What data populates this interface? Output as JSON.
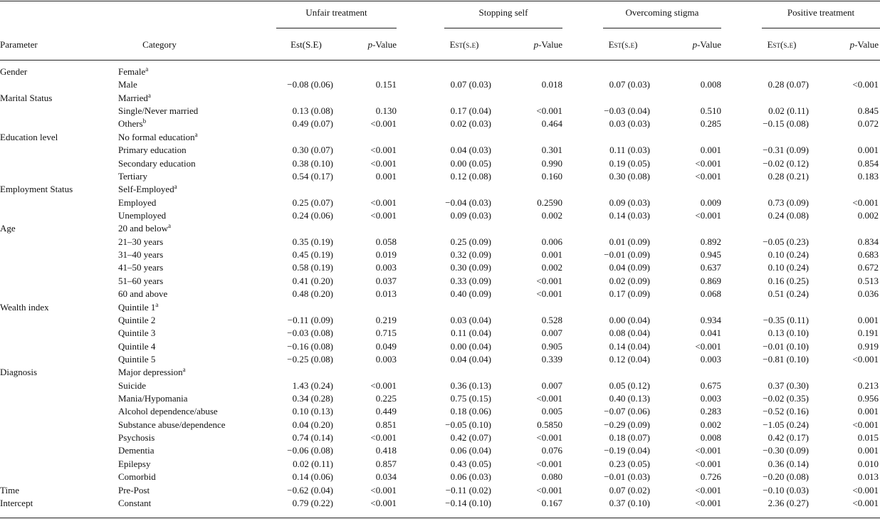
{
  "header": {
    "parameter": "Parameter",
    "category": "Category",
    "groups": [
      {
        "title": "Unfair treatment",
        "est": "Est(S.E)",
        "p": "p-Value"
      },
      {
        "title": "Stopping self",
        "est": "Est(s.e)",
        "p": "p-Value"
      },
      {
        "title": "Overcoming stigma",
        "est": "Est(s.e)",
        "p": "p-Value"
      },
      {
        "title": "Positive treatment",
        "est": "Est(s.e)",
        "p": "p-Value"
      }
    ]
  },
  "table": {
    "groups": [
      {
        "parameter": "Gender",
        "rows": [
          {
            "category": "Female",
            "note": "a"
          },
          {
            "category": "Male",
            "values": [
              "−0.08 (0.06)",
              "0.151",
              "0.07 (0.03)",
              "0.018",
              "0.07 (0.03)",
              "0.008",
              "0.28 (0.07)",
              "<0.001"
            ]
          }
        ]
      },
      {
        "parameter": "Marital Status",
        "rows": [
          {
            "category": "Married",
            "note": "a"
          },
          {
            "category": "Single/Never married",
            "values": [
              "0.13 (0.08)",
              "0.130",
              "0.17 (0.04)",
              "<0.001",
              "−0.03 (0.04)",
              "0.510",
              "0.02 (0.11)",
              "0.845"
            ]
          },
          {
            "category": "Others",
            "note": "b",
            "values": [
              "0.49 (0.07)",
              "<0.001",
              "0.02 (0.03)",
              "0.464",
              "0.03 (0.03)",
              "0.285",
              "−0.15 (0.08)",
              "0.072"
            ]
          }
        ]
      },
      {
        "parameter": "Education level",
        "rows": [
          {
            "category": "No formal education",
            "note": "a"
          },
          {
            "category": "Primary education",
            "values": [
              "0.30 (0.07)",
              "<0.001",
              "0.04 (0.03)",
              "0.301",
              "0.11 (0.03)",
              "0.001",
              "−0.31 (0.09)",
              "0.001"
            ]
          },
          {
            "category": "Secondary education",
            "values": [
              "0.38 (0.10)",
              "<0.001",
              "0.00 (0.05)",
              "0.990",
              "0.19 (0.05)",
              "<0.001",
              "−0.02 (0.12)",
              "0.854"
            ]
          },
          {
            "category": "Tertiary",
            "values": [
              "0.54 (0.17)",
              "0.001",
              "0.12 (0.08)",
              "0.160",
              "0.30 (0.08)",
              "<0.001",
              "0.28 (0.21)",
              "0.183"
            ]
          }
        ]
      },
      {
        "parameter": "Employment Status",
        "rows": [
          {
            "category": "Self-Employed",
            "note": "a"
          },
          {
            "category": "Employed",
            "values": [
              "0.25 (0.07)",
              "<0.001",
              "−0.04 (0.03)",
              "0.2590",
              "0.09 (0.03)",
              "0.009",
              "0.73 (0.09)",
              "<0.001"
            ]
          },
          {
            "category": "Unemployed",
            "values": [
              "0.24 (0.06)",
              "<0.001",
              "0.09 (0.03)",
              "0.002",
              "0.14 (0.03)",
              "<0.001",
              "0.24 (0.08)",
              "0.002"
            ]
          }
        ]
      },
      {
        "parameter": "Age",
        "rows": [
          {
            "category": "20 and below",
            "note": "a"
          },
          {
            "category": "21–30 years",
            "values": [
              "0.35 (0.19)",
              "0.058",
              "0.25 (0.09)",
              "0.006",
              "0.01 (0.09)",
              "0.892",
              "−0.05 (0.23)",
              "0.834"
            ]
          },
          {
            "category": "31–40 years",
            "values": [
              "0.45 (0.19)",
              "0.019",
              "0.32 (0.09)",
              "0.001",
              "−0.01 (0.09)",
              "0.945",
              "0.10 (0.24)",
              "0.683"
            ]
          },
          {
            "category": "41–50 years",
            "values": [
              "0.58 (0.19)",
              "0.003",
              "0.30 (0.09)",
              "0.002",
              "0.04 (0.09)",
              "0.637",
              "0.10 (0.24)",
              "0.672"
            ]
          },
          {
            "category": "51–60 years",
            "values": [
              "0.41 (0.20)",
              "0.037",
              "0.33 (0.09)",
              "<0.001",
              "0.02 (0.09)",
              "0.869",
              "0.16 (0.25)",
              "0.513"
            ]
          },
          {
            "category": "60 and above",
            "values": [
              "0.48 (0.20)",
              "0.013",
              "0.40 (0.09)",
              "<0.001",
              "0.17 (0.09)",
              "0.068",
              "0.51 (0.24)",
              "0.036"
            ]
          }
        ]
      },
      {
        "parameter": "Wealth index",
        "rows": [
          {
            "category": "Quintile 1",
            "note": "a"
          },
          {
            "category": "Quintile 2",
            "values": [
              "−0.11 (0.09)",
              "0.219",
              "0.03 (0.04)",
              "0.528",
              "0.00 (0.04)",
              "0.934",
              "−0.35 (0.11)",
              "0.001"
            ]
          },
          {
            "category": "Quintile 3",
            "values": [
              "−0.03 (0.08)",
              "0.715",
              "0.11 (0.04)",
              "0.007",
              "0.08 (0.04)",
              "0.041",
              "0.13 (0.10)",
              "0.191"
            ]
          },
          {
            "category": "Quintile 4",
            "values": [
              "−0.16 (0.08)",
              "0.049",
              "0.00 (0.04)",
              "0.905",
              "0.14 (0.04)",
              "<0.001",
              "−0.01 (0.10)",
              "0.919"
            ]
          },
          {
            "category": "Quintile 5",
            "values": [
              "−0.25 (0.08)",
              "0.003",
              "0.04 (0.04)",
              "0.339",
              "0.12 (0.04)",
              "0.003",
              "−0.81 (0.10)",
              "<0.001"
            ]
          }
        ]
      },
      {
        "parameter": "Diagnosis",
        "rows": [
          {
            "category": "Major depression",
            "note": "a"
          },
          {
            "category": "Suicide",
            "values": [
              "1.43 (0.24)",
              "<0.001",
              "0.36 (0.13)",
              "0.007",
              "0.05 (0.12)",
              "0.675",
              "0.37 (0.30)",
              "0.213"
            ]
          },
          {
            "category": "Mania/Hypomania",
            "values": [
              "0.34 (0.28)",
              "0.225",
              "0.75 (0.15)",
              "<0.001",
              "0.40 (0.13)",
              "0.003",
              "−0.02 (0.35)",
              "0.956"
            ]
          },
          {
            "category": "Alcohol dependence/abuse",
            "values": [
              "0.10 (0.13)",
              "0.449",
              "0.18 (0.06)",
              "0.005",
              "−0.07 (0.06)",
              "0.283",
              "−0.52 (0.16)",
              "0.001"
            ]
          },
          {
            "category": "Substance abuse/dependence",
            "values": [
              "0.04 (0.20)",
              "0.851",
              "−0.05 (0.10)",
              "0.5850",
              "−0.29 (0.09)",
              "0.002",
              "−1.05 (0.24)",
              "<0.001"
            ]
          },
          {
            "category": "Psychosis",
            "values": [
              "0.74 (0.14)",
              "<0.001",
              "0.42 (0.07)",
              "<0.001",
              "0.18 (0.07)",
              "0.008",
              "0.42 (0.17)",
              "0.015"
            ]
          },
          {
            "category": "Dementia",
            "values": [
              "−0.06 (0.08)",
              "0.418",
              "0.06 (0.04)",
              "0.076",
              "−0.19 (0.04)",
              "<0.001",
              "−0.30 (0.09)",
              "0.001"
            ]
          },
          {
            "category": "Epilepsy",
            "values": [
              "0.02 (0.11)",
              "0.857",
              "0.43 (0.05)",
              "<0.001",
              "0.23 (0.05)",
              "<0.001",
              "0.36 (0.14)",
              "0.010"
            ]
          },
          {
            "category": "Comorbid",
            "values": [
              "0.14 (0.06)",
              "0.034",
              "0.06 (0.03)",
              "0.080",
              "−0.01 (0.03)",
              "0.726",
              "−0.20 (0.08)",
              "0.013"
            ]
          }
        ]
      },
      {
        "parameter": "Time",
        "rows": [
          {
            "category": "Pre-Post",
            "values": [
              "−0.62 (0.04)",
              "<0.001",
              "−0.11 (0.02)",
              "<0.001",
              "0.07 (0.02)",
              "<0.001",
              "−0.10 (0.03)",
              "<0.001"
            ]
          }
        ]
      },
      {
        "parameter": "Intercept",
        "rows": [
          {
            "category": "Constant",
            "values": [
              "0.79 (0.22)",
              "<0.001",
              "−0.14 (0.10)",
              "0.167",
              "0.37 (0.10)",
              "<0.001",
              "2.36 (0.27)",
              "<0.001"
            ]
          }
        ]
      }
    ]
  }
}
